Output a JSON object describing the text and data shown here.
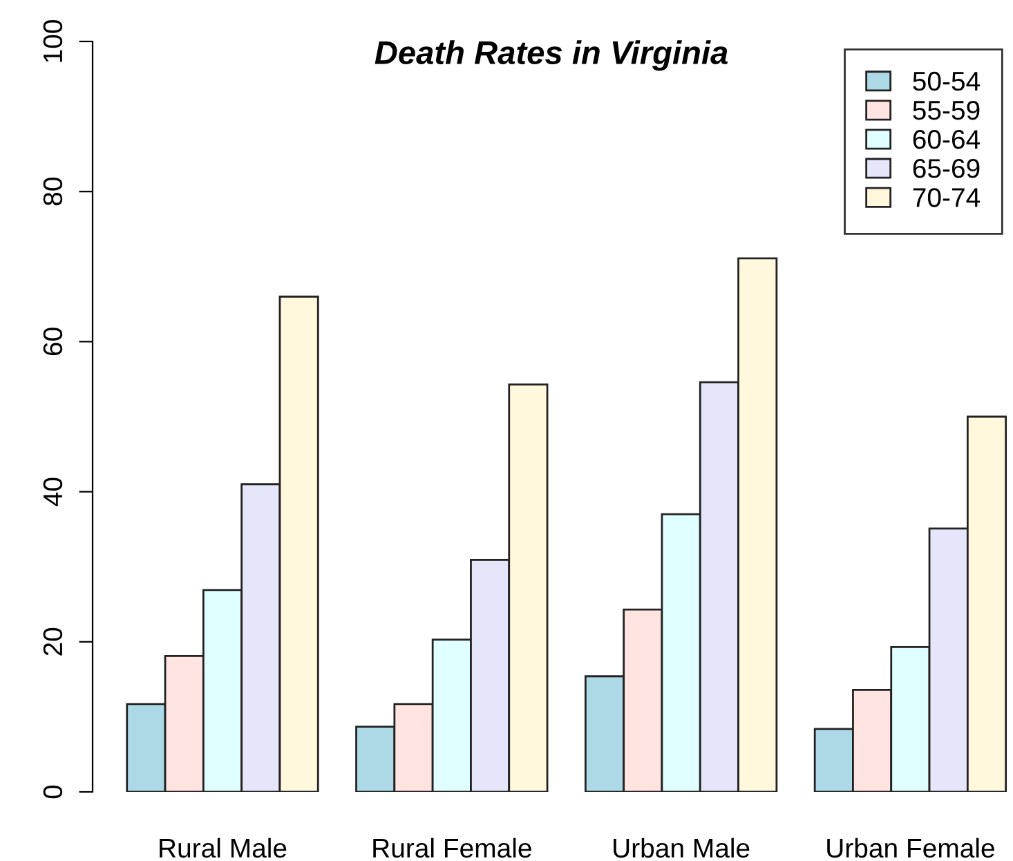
{
  "chart_data": {
    "type": "bar",
    "title": "Death Rates in Virginia",
    "categories": [
      "Rural Male",
      "Rural Female",
      "Urban Male",
      "Urban Female"
    ],
    "series": [
      {
        "name": "50-54",
        "color": "#add8e6",
        "values": [
          11.7,
          8.7,
          15.4,
          8.4
        ]
      },
      {
        "name": "55-59",
        "color": "#ffe4e1",
        "values": [
          18.1,
          11.7,
          24.3,
          13.6
        ]
      },
      {
        "name": "60-64",
        "color": "#e0ffff",
        "values": [
          26.9,
          20.3,
          37.0,
          19.3
        ]
      },
      {
        "name": "65-69",
        "color": "#e6e6fa",
        "values": [
          41.0,
          30.9,
          54.6,
          35.1
        ]
      },
      {
        "name": "70-74",
        "color": "#fff8dc",
        "values": [
          66.0,
          54.3,
          71.1,
          50.0
        ]
      }
    ],
    "ylim": [
      0,
      100
    ],
    "yticks": [
      0,
      20,
      40,
      60,
      80,
      100
    ],
    "grid": false,
    "legend": "top right"
  }
}
